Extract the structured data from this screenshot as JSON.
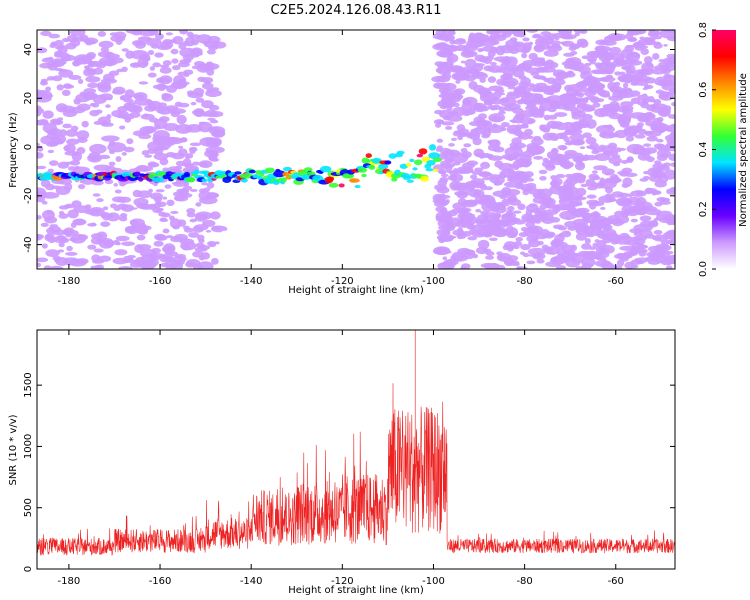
{
  "title": "C2E5.2024.126.08.43.R11",
  "chart_data": [
    {
      "type": "heatmap",
      "xlabel": "Height of straight line (km)",
      "ylabel": "Frequency (Hz)",
      "xlim": [
        -187,
        -47
      ],
      "ylim": [
        -50,
        48
      ],
      "x_ticks": [
        -180,
        -160,
        -140,
        -120,
        -100,
        -80,
        -60
      ],
      "y_ticks": [
        -40,
        -20,
        0,
        20,
        40
      ],
      "colorbar": {
        "label": "Normalized spectral amplitude",
        "range": [
          0,
          0.8
        ],
        "ticks": [
          0.0,
          0.2,
          0.4,
          0.6,
          0.8
        ],
        "colors": [
          "#ffffff",
          "#cc99ff",
          "#6a00ff",
          "#0000ff",
          "#00e5ff",
          "#33ff33",
          "#ffff00",
          "#ff8800",
          "#ff0000",
          "#ff0066"
        ]
      },
      "band": {
        "center_hz": -12,
        "x_range": [
          -187,
          -99
        ],
        "max_amplitude": 0.8
      },
      "quiet_zone": [
        -147,
        -99
      ],
      "noisy_zone": [
        -99,
        -47
      ]
    },
    {
      "type": "line",
      "xlabel": "Height of straight line (km)",
      "ylabel": "SNR (10 * v/v)",
      "xlim": [
        -187,
        -47
      ],
      "ylim": [
        0,
        1950
      ],
      "x_ticks": [
        -180,
        -160,
        -140,
        -120,
        -100,
        -80,
        -60
      ],
      "y_ticks": [
        0,
        500,
        1000,
        1500
      ],
      "series": [
        {
          "color": "#ee2222",
          "segments": [
            {
              "x": [
                -187,
                -170
              ],
              "baseline": 160,
              "spread": 110
            },
            {
              "x": [
                -170,
                -150
              ],
              "baseline": 200,
              "spread": 150
            },
            {
              "x": [
                -150,
                -140
              ],
              "baseline": 250,
              "spread": 200
            },
            {
              "x": [
                -140,
                -130
              ],
              "baseline": 350,
              "spread": 350
            },
            {
              "x": [
                -130,
                -120
              ],
              "baseline": 380,
              "spread": 400
            },
            {
              "x": [
                -120,
                -110
              ],
              "baseline": 400,
              "spread": 450
            },
            {
              "x": [
                -110,
                -100
              ],
              "baseline": 650,
              "spread": 800
            },
            {
              "x": [
                -100,
                -97
              ],
              "baseline": 650,
              "spread": 800
            },
            {
              "x": [
                -97,
                -47
              ],
              "baseline": 170,
              "spread": 90
            }
          ],
          "peak": {
            "x": -104,
            "y": 1950
          }
        }
      ]
    }
  ]
}
